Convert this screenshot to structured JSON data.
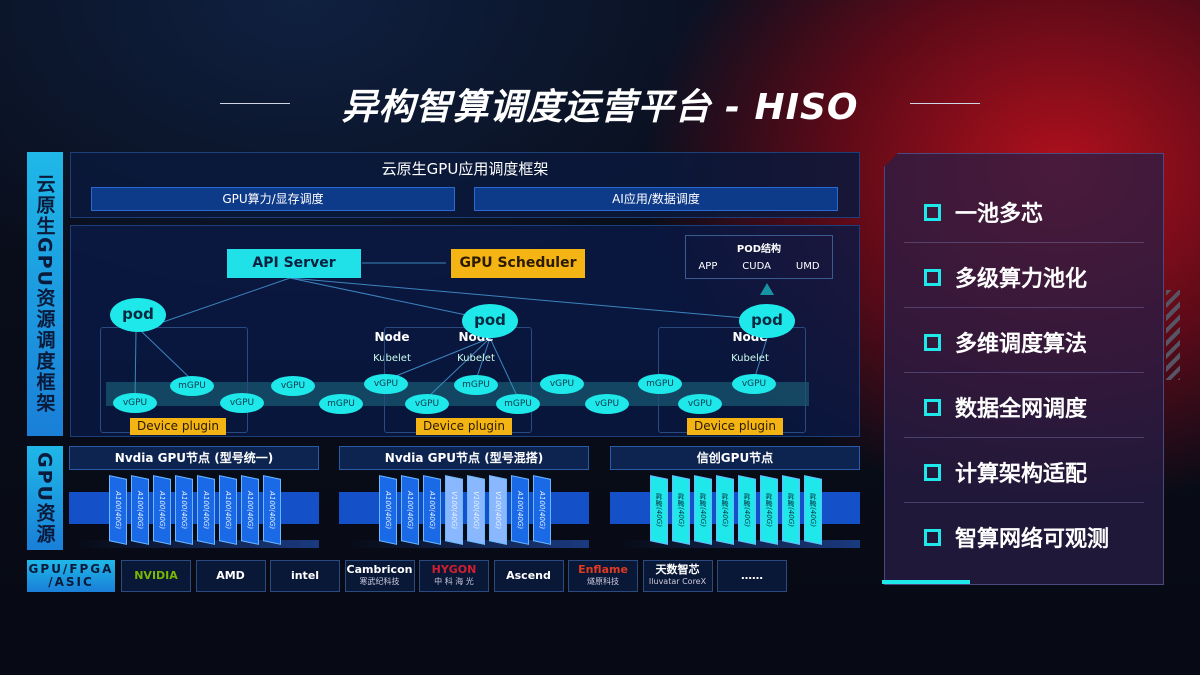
{
  "title": "异构智算调度运营平台 - HISO",
  "side_labels": {
    "top": "云原生GPU资源调度框架",
    "bottom": "GPU资源",
    "vendors": "GPU/FPGA /ASIC"
  },
  "framework": {
    "title": "云原生GPU应用调度框架",
    "left": "GPU算力/显存调度",
    "right": "AI应用/数据调度"
  },
  "api_server": "API Server",
  "gpu_scheduler": "GPU Scheduler",
  "pod_structure": {
    "title": "POD结构",
    "items": [
      "APP",
      "CUDA",
      "UMD"
    ]
  },
  "pod_label": "pod",
  "node_label": "Node",
  "kubelet_label": "Kubelet",
  "device_plugin": "Device plugin",
  "gpus": [
    "vGPU",
    "mGPU",
    "vGPU",
    "vGPU",
    "mGPU",
    "vGPU",
    "vGPU",
    "mGPU",
    "mGPU",
    "vGPU",
    "vGPU",
    "mGPU",
    "vGPU",
    "vGPU"
  ],
  "gpu_nodes": [
    {
      "title": "Nvdia GPU节点 (型号统一)",
      "cards": [
        "A100(40G)",
        "A100(40G)",
        "A100(40G)",
        "A100(40G)",
        "A100(40G)",
        "A100(40G)",
        "A100(40G)",
        "A100(40G)"
      ]
    },
    {
      "title": "Nvdia GPU节点 (型号混搭)",
      "cards": [
        "A100(40G)",
        "A100(40G)",
        "A100(40G)",
        "V100(40G)",
        "V100(40G)",
        "V100(40G)",
        "A100(40G)",
        "A100(40G)"
      ]
    },
    {
      "title": "信创GPU节点",
      "cards": [
        "昇腾(40G)",
        "昇腾(40G)",
        "昇腾(40G)",
        "昇腾(40G)",
        "昇腾(40G)",
        "昇腾(40G)",
        "昇腾(40G)",
        "昇腾(40G)"
      ]
    }
  ],
  "vendors": [
    {
      "name": "NVIDIA",
      "sub": ""
    },
    {
      "name": "AMD",
      "sub": ""
    },
    {
      "name": "intel",
      "sub": ""
    },
    {
      "name": "Cambricon",
      "sub": "寒武纪科技"
    },
    {
      "name": "HYGON",
      "sub": "中 科 海 光"
    },
    {
      "name": "Ascend",
      "sub": ""
    },
    {
      "name": "Enflame",
      "sub": "燧原科技"
    },
    {
      "name": "天数智芯",
      "sub": "Iluvatar CoreX"
    },
    {
      "name": "……",
      "sub": ""
    }
  ],
  "features": [
    "一池多芯",
    "多级算力池化",
    "多维调度算法",
    "数据全网调度",
    "计算架构适配",
    "智算网络可观测"
  ],
  "colors": {
    "cyan": "#1ee8ea",
    "yellow": "#f4b414",
    "blue": "#1a7fd8",
    "red": "#b0101c"
  }
}
